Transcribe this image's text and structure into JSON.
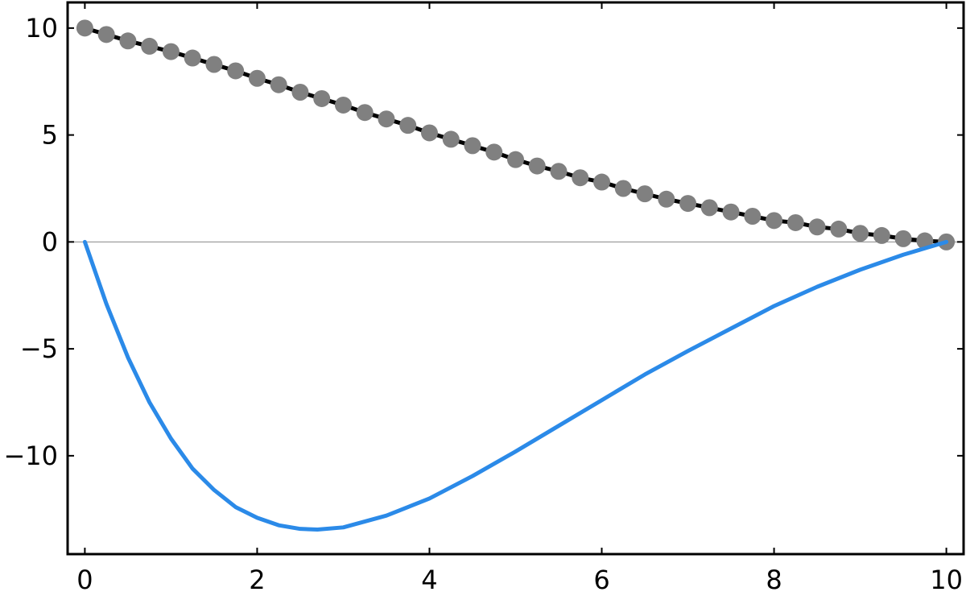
{
  "chart_data": {
    "type": "line",
    "title": "",
    "xlabel": "",
    "ylabel": "",
    "xlim": [
      -0.2,
      10.2
    ],
    "ylim": [
      -14.6,
      11.2
    ],
    "grid": false,
    "x_ticks": [
      0,
      2,
      4,
      6,
      8,
      10
    ],
    "x_tick_labels": [
      "0",
      "2",
      "4",
      "6",
      "8",
      "10"
    ],
    "y_ticks": [
      -10,
      -5,
      0,
      5,
      10
    ],
    "y_tick_labels": [
      "−10",
      "−5",
      "0",
      "5",
      "10"
    ],
    "reference_line": {
      "y": 0,
      "color": "#888888"
    },
    "series": [
      {
        "style": "line-with-markers",
        "line_color": "#000000",
        "marker_color": "#808080",
        "x": [
          0,
          0.25,
          0.5,
          0.75,
          1,
          1.25,
          1.5,
          1.75,
          2,
          2.25,
          2.5,
          2.75,
          3,
          3.25,
          3.5,
          3.75,
          4,
          4.25,
          4.5,
          4.75,
          5,
          5.25,
          5.5,
          5.75,
          6,
          6.25,
          6.5,
          6.75,
          7,
          7.25,
          7.5,
          7.75,
          8,
          8.25,
          8.5,
          8.75,
          9,
          9.25,
          9.5,
          9.75,
          10
        ],
        "y": [
          10.0,
          9.7,
          9.4,
          9.15,
          8.9,
          8.6,
          8.3,
          8.0,
          7.65,
          7.35,
          7.0,
          6.7,
          6.4,
          6.05,
          5.75,
          5.45,
          5.1,
          4.8,
          4.5,
          4.2,
          3.85,
          3.55,
          3.3,
          3.0,
          2.8,
          2.5,
          2.25,
          2.0,
          1.8,
          1.6,
          1.4,
          1.2,
          1.0,
          0.9,
          0.7,
          0.6,
          0.4,
          0.3,
          0.15,
          0.05,
          0.0
        ]
      },
      {
        "style": "line",
        "line_color": "#2b8ae8",
        "x": [
          0,
          0.25,
          0.5,
          0.75,
          1,
          1.25,
          1.5,
          1.75,
          2,
          2.25,
          2.5,
          2.7,
          3,
          3.5,
          4,
          4.5,
          5,
          5.5,
          6,
          6.5,
          7,
          7.5,
          8,
          8.5,
          9,
          9.5,
          10
        ],
        "y": [
          0.0,
          -2.9,
          -5.4,
          -7.5,
          -9.2,
          -10.6,
          -11.6,
          -12.4,
          -12.9,
          -13.25,
          -13.42,
          -13.45,
          -13.35,
          -12.8,
          -12.0,
          -10.95,
          -9.8,
          -8.6,
          -7.4,
          -6.2,
          -5.1,
          -4.05,
          -3.0,
          -2.1,
          -1.3,
          -0.6,
          0.0
        ]
      }
    ]
  }
}
